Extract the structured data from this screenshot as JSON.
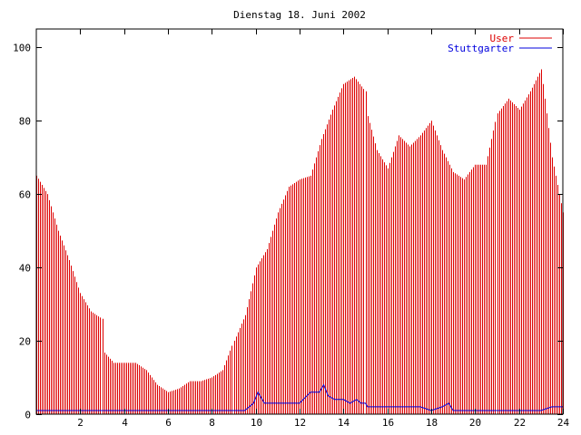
{
  "chart_data": {
    "type": "bar",
    "title": "Dienstag 18. Juni 2002",
    "xlabel": "",
    "ylabel": "",
    "xlim": [
      0,
      24
    ],
    "ylim": [
      0,
      105
    ],
    "x_ticks": [
      2,
      4,
      6,
      8,
      10,
      12,
      14,
      16,
      18,
      20,
      22,
      24
    ],
    "y_ticks": [
      0,
      20,
      40,
      60,
      80,
      100
    ],
    "legend": "top-right",
    "series": [
      {
        "name": "User",
        "color": "#dd0000",
        "style": "impulses",
        "x": [
          0,
          0.5,
          1,
          1.5,
          2,
          2.5,
          3,
          3.05,
          3.5,
          4,
          4.5,
          5,
          5.5,
          6,
          6.5,
          7,
          7.5,
          8,
          8.5,
          9,
          9.5,
          10,
          10.5,
          11,
          11.5,
          12,
          12.5,
          13,
          13.5,
          14,
          14.5,
          15,
          15.05,
          15.5,
          16,
          16.5,
          17,
          17.5,
          18,
          18.5,
          19,
          19.5,
          20,
          20.5,
          21,
          21.5,
          22,
          22.5,
          23,
          23.5,
          24
        ],
        "values": [
          65,
          60,
          50,
          42,
          33,
          28,
          26,
          17,
          14,
          14,
          14,
          12,
          8,
          6,
          7,
          9,
          9,
          10,
          12,
          20,
          27,
          40,
          45,
          55,
          62,
          64,
          65,
          75,
          83,
          90,
          92,
          88,
          82,
          72,
          67,
          76,
          73,
          76,
          80,
          72,
          66,
          64,
          68,
          68,
          82,
          86,
          83,
          88,
          94,
          70,
          55
        ]
      },
      {
        "name": "Stuttgarter",
        "color": "#0000dd",
        "style": "line",
        "x": [
          0,
          9.5,
          9.9,
          10.1,
          10.4,
          11,
          12,
          12.5,
          12.9,
          13.1,
          13.3,
          13.6,
          14,
          14.3,
          14.6,
          14.8,
          15,
          15.1,
          16,
          16.8,
          17,
          17.5,
          18,
          18.5,
          18.8,
          19,
          20,
          21,
          22,
          23,
          23.5,
          23.8,
          24
        ],
        "values": [
          1,
          1,
          3,
          6,
          3,
          3,
          3,
          6,
          6,
          8,
          5,
          4,
          4,
          3,
          4,
          3,
          3,
          2,
          2,
          2,
          2,
          2,
          1,
          2,
          3,
          1,
          1,
          1,
          1,
          1,
          2,
          2,
          2
        ]
      }
    ]
  }
}
